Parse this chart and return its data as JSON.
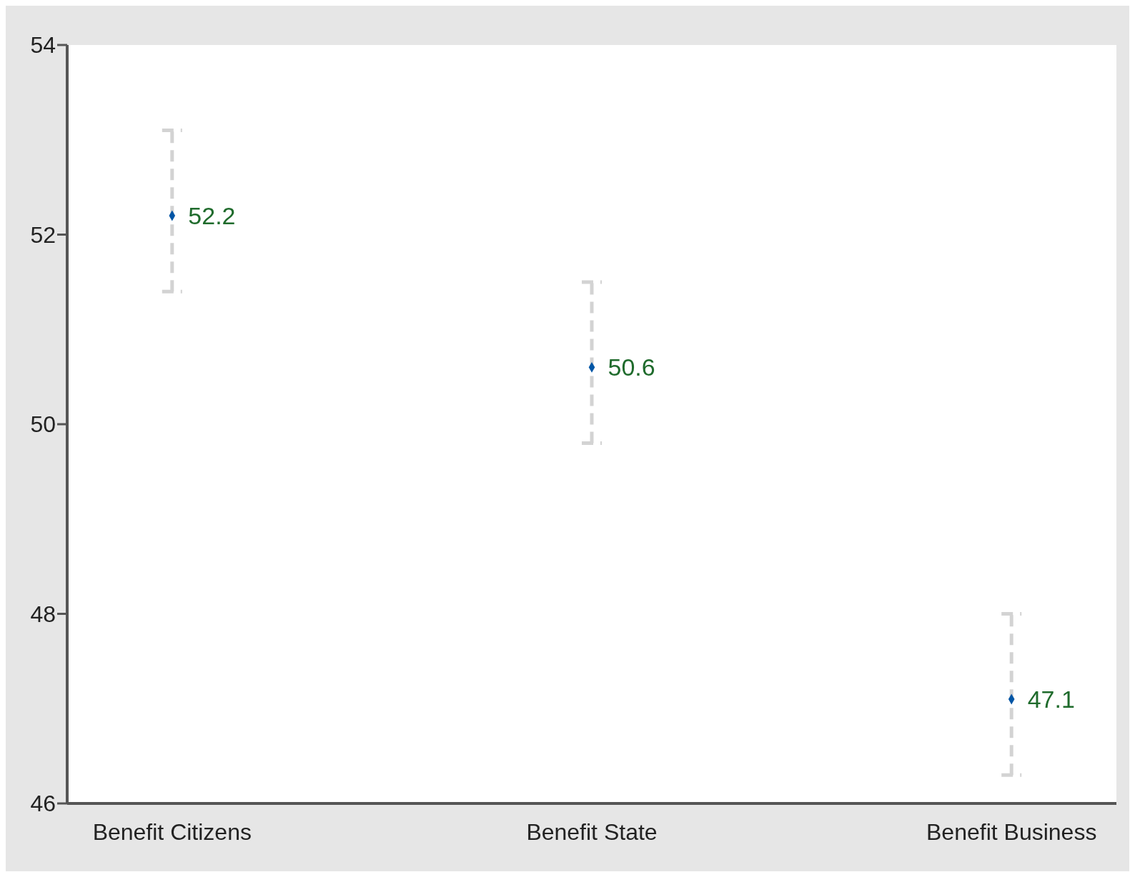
{
  "chart_data": {
    "type": "scatter",
    "categories": [
      "Benefit Citizens",
      "Benefit State",
      "Benefit Business"
    ],
    "values": [
      52.2,
      50.6,
      47.1
    ],
    "errors": [
      [
        51.4,
        53.1
      ],
      [
        49.8,
        51.5
      ],
      [
        46.3,
        48.0
      ]
    ],
    "color": "#0055a5",
    "marker": "diamond",
    "data_labels": true,
    "grid": false,
    "legend": false,
    "ylim": [
      46,
      54
    ],
    "yticks": [
      46,
      48,
      50,
      52,
      54
    ]
  }
}
